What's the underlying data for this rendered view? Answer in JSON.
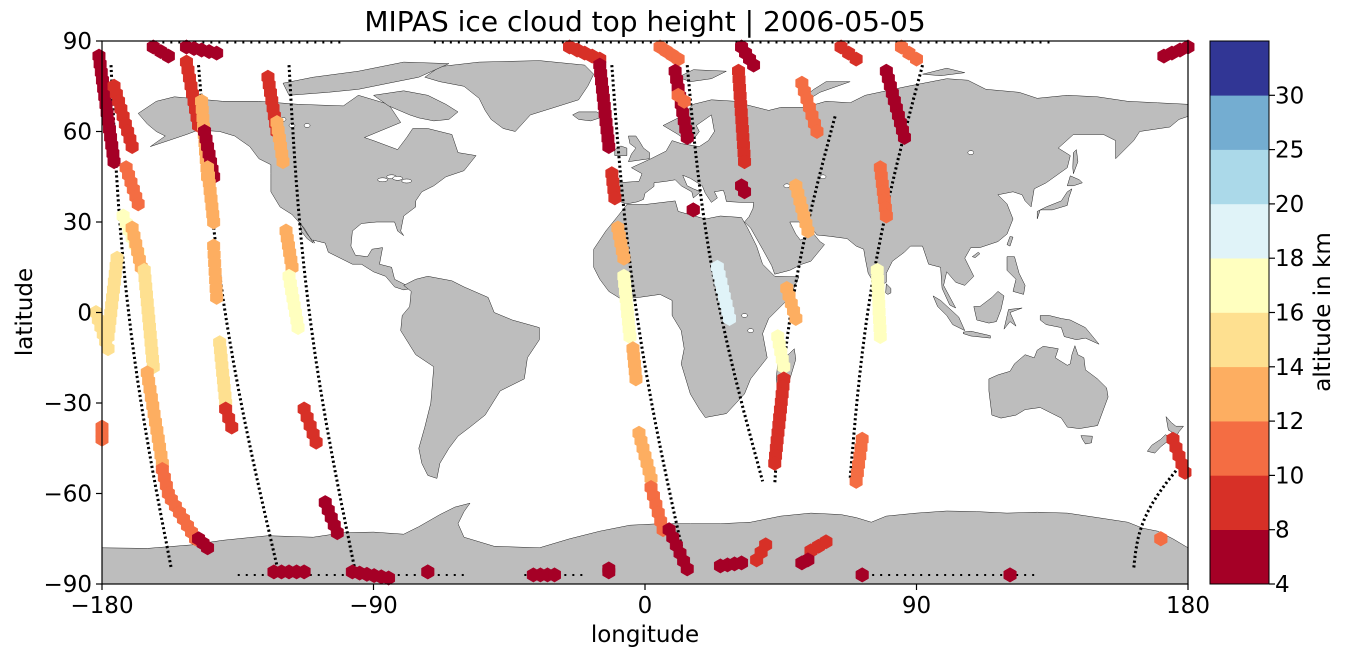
{
  "chart_data": {
    "type": "scatter",
    "title": "MIPAS ice cloud top height | 2006-05-05",
    "xlabel": "longitude",
    "ylabel": "latitude",
    "xlim": [
      -180,
      180
    ],
    "ylim": [
      -90,
      90
    ],
    "xticks": [
      -180,
      -90,
      0,
      90,
      180
    ],
    "yticks": [
      90,
      60,
      30,
      0,
      -30,
      -60,
      -90
    ],
    "xtick_labels": [
      "−180",
      "−90",
      "0",
      "90",
      "180"
    ],
    "ytick_labels": [
      "90",
      "60",
      "30",
      "0",
      "−30",
      "−60",
      "−90"
    ],
    "grid": false,
    "background_map": "world land masses in grey",
    "colors": {
      "land": "#bdbdbd",
      "coast": "#222222",
      "track": "#000000"
    },
    "colorbar": {
      "label": "altitude in km",
      "bounds": [
        4,
        8,
        10,
        12,
        14,
        16,
        18,
        20,
        25,
        30
      ],
      "tick_labels": [
        "4",
        "8",
        "10",
        "12",
        "14",
        "16",
        "18",
        "20",
        "25",
        "30"
      ],
      "colors": [
        "#a50026",
        "#d73027",
        "#f46d43",
        "#fdae61",
        "#fee090",
        "#ffffbf",
        "#e0f3f8",
        "#abd9e9",
        "#74add1",
        "#313695"
      ]
    },
    "orbit_tracks": [
      {
        "start_lon": -177,
        "end_lon": -157,
        "lat_top": 82,
        "lat_bottom": -85
      },
      {
        "start_lon": -148,
        "end_lon": -122,
        "lat_top": 82,
        "lat_bottom": -84
      },
      {
        "start_lon": -118,
        "end_lon": -96,
        "lat_top": 82,
        "lat_bottom": -86
      },
      {
        "start_lon": -11,
        "end_lon": 14,
        "lat_top": 82,
        "lat_bottom": -86
      },
      {
        "start_lon": 14,
        "end_lon": 39,
        "lat_top": 82,
        "lat_bottom": -56
      },
      {
        "start_lon": 63,
        "end_lon": 43,
        "lat_top": 65,
        "lat_bottom": -57
      },
      {
        "start_lon": 92,
        "end_lon": 68,
        "lat_top": 82,
        "lat_bottom": -55
      },
      {
        "start_lon": 178,
        "end_lon": 162,
        "lat_top": -50,
        "lat_bottom": -85
      }
    ],
    "cloud_segments": [
      {
        "lon": [
          -181,
          -176
        ],
        "lat": [
          85,
          50
        ],
        "alt": 6
      },
      {
        "lon": [
          -176,
          -170
        ],
        "lat": [
          75,
          55
        ],
        "alt": 9
      },
      {
        "lon": [
          -172,
          -168
        ],
        "lat": [
          48,
          36
        ],
        "alt": 11
      },
      {
        "lon": [
          -173,
          -168
        ],
        "lat": [
          32,
          20
        ],
        "alt": 17
      },
      {
        "lon": [
          -175,
          -178
        ],
        "lat": [
          18,
          -8
        ],
        "alt": 15
      },
      {
        "lon": [
          -170,
          -167
        ],
        "lat": [
          28,
          15
        ],
        "alt": 13
      },
      {
        "lon": [
          -166,
          -163
        ],
        "lat": [
          14,
          -18
        ],
        "alt": 15
      },
      {
        "lon": [
          -165,
          -160
        ],
        "lat": [
          -20,
          -50
        ],
        "alt": 13
      },
      {
        "lon": [
          -160,
          -158
        ],
        "lat": [
          -52,
          -60
        ],
        "alt": 10
      },
      {
        "lon": [
          -157,
          -149
        ],
        "lat": [
          -62,
          -75
        ],
        "alt": 11
      },
      {
        "lon": [
          -148,
          -145
        ],
        "lat": [
          -75,
          -78
        ],
        "alt": 6
      },
      {
        "lon": [
          -180,
          -180
        ],
        "lat": [
          -38,
          -42
        ],
        "alt": 10
      },
      {
        "lon": [
          -182,
          -178
        ],
        "lat": [
          0,
          -12
        ],
        "alt": 15
      },
      {
        "lon": [
          -163,
          -158
        ],
        "lat": [
          88,
          85
        ],
        "alt": 6
      },
      {
        "lon": [
          -152,
          -142
        ],
        "lat": [
          88,
          86
        ],
        "alt": 6
      },
      {
        "lon": [
          -152,
          -148
        ],
        "lat": [
          83,
          62
        ],
        "alt": 9
      },
      {
        "lon": [
          -147,
          -145
        ],
        "lat": [
          70,
          45
        ],
        "alt": 13
      },
      {
        "lon": [
          -146,
          -143
        ],
        "lat": [
          60,
          45
        ],
        "alt": 6
      },
      {
        "lon": [
          -145,
          -143
        ],
        "lat": [
          48,
          30
        ],
        "alt": 13
      },
      {
        "lon": [
          -143,
          -142
        ],
        "lat": [
          22,
          5
        ],
        "alt": 12
      },
      {
        "lon": [
          -141,
          -139
        ],
        "lat": [
          -10,
          -30
        ],
        "alt": 15
      },
      {
        "lon": [
          -139,
          -137
        ],
        "lat": [
          -32,
          -38
        ],
        "alt": 9
      },
      {
        "lon": [
          -125,
          -122
        ],
        "lat": [
          78,
          60
        ],
        "alt": 9
      },
      {
        "lon": [
          -122,
          -120
        ],
        "lat": [
          63,
          50
        ],
        "alt": 13
      },
      {
        "lon": [
          -119,
          -117
        ],
        "lat": [
          27,
          15
        ],
        "alt": 12
      },
      {
        "lon": [
          -118,
          -115
        ],
        "lat": [
          12,
          -5
        ],
        "alt": 17
      },
      {
        "lon": [
          -113,
          -109
        ],
        "lat": [
          -32,
          -43
        ],
        "alt": 9
      },
      {
        "lon": [
          -106,
          -102
        ],
        "lat": [
          -63,
          -73
        ],
        "alt": 6
      },
      {
        "lon": [
          -123,
          -113
        ],
        "lat": [
          -86,
          -86
        ],
        "alt": 6
      },
      {
        "lon": [
          -97,
          -85
        ],
        "lat": [
          -86,
          -88
        ],
        "alt": 6
      },
      {
        "lon": [
          -72,
          -72
        ],
        "lat": [
          -86,
          -86
        ],
        "alt": 6
      },
      {
        "lon": [
          -37,
          -30
        ],
        "lat": [
          -87,
          -87
        ],
        "alt": 6
      },
      {
        "lon": [
          -25,
          -15
        ],
        "lat": [
          88,
          84
        ],
        "alt": 9
      },
      {
        "lon": [
          -15,
          -12
        ],
        "lat": [
          82,
          55
        ],
        "alt": 6
      },
      {
        "lon": [
          -11,
          -10
        ],
        "lat": [
          46,
          38
        ],
        "alt": 9
      },
      {
        "lon": [
          -9,
          -7
        ],
        "lat": [
          28,
          18
        ],
        "alt": 13
      },
      {
        "lon": [
          -7,
          -5
        ],
        "lat": [
          12,
          -8
        ],
        "alt": 17
      },
      {
        "lon": [
          -4,
          -3
        ],
        "lat": [
          -12,
          -22
        ],
        "alt": 12
      },
      {
        "lon": [
          -2,
          2
        ],
        "lat": [
          -40,
          -55
        ],
        "alt": 13
      },
      {
        "lon": [
          2,
          6
        ],
        "lat": [
          -58,
          -72
        ],
        "alt": 10
      },
      {
        "lon": [
          8,
          14
        ],
        "lat": [
          -72,
          -85
        ],
        "alt": 6
      },
      {
        "lon": [
          5,
          11
        ],
        "lat": [
          88,
          84
        ],
        "alt": 10
      },
      {
        "lon": [
          10,
          14
        ],
        "lat": [
          80,
          58
        ],
        "alt": 6
      },
      {
        "lon": [
          11,
          13
        ],
        "lat": [
          72,
          70
        ],
        "alt": 11
      },
      {
        "lon": [
          16,
          16
        ],
        "lat": [
          34,
          34
        ],
        "alt": 6
      },
      {
        "lon": [
          24,
          28
        ],
        "lat": [
          15,
          -2
        ],
        "alt": 18
      },
      {
        "lon": [
          32,
          36
        ],
        "lat": [
          88,
          82
        ],
        "alt": 6
      },
      {
        "lon": [
          31,
          33
        ],
        "lat": [
          80,
          50
        ],
        "alt": 9
      },
      {
        "lon": [
          32,
          33
        ],
        "lat": [
          42,
          40
        ],
        "alt": 6
      },
      {
        "lon": [
          52,
          57
        ],
        "lat": [
          76,
          60
        ],
        "alt": 10
      },
      {
        "lon": [
          50,
          54
        ],
        "lat": [
          42,
          27
        ],
        "alt": 13
      },
      {
        "lon": [
          47,
          50
        ],
        "lat": [
          8,
          -2
        ],
        "alt": 12
      },
      {
        "lon": [
          44,
          46
        ],
        "lat": [
          -8,
          -18
        ],
        "alt": 17
      },
      {
        "lon": [
          46,
          43
        ],
        "lat": [
          -22,
          -50
        ],
        "alt": 9
      },
      {
        "lon": [
          65,
          70
        ],
        "lat": [
          88,
          84
        ],
        "alt": 9
      },
      {
        "lon": [
          85,
          90
        ],
        "lat": [
          88,
          84
        ],
        "alt": 10
      },
      {
        "lon": [
          80,
          86
        ],
        "lat": [
          80,
          58
        ],
        "alt": 6
      },
      {
        "lon": [
          78,
          80
        ],
        "lat": [
          48,
          32
        ],
        "alt": 11
      },
      {
        "lon": [
          77,
          78
        ],
        "lat": [
          14,
          -8
        ],
        "alt": 17
      },
      {
        "lon": [
          72,
          70
        ],
        "lat": [
          -42,
          -56
        ],
        "alt": 10
      },
      {
        "lon": [
          37,
          40
        ],
        "lat": [
          -82,
          -77
        ],
        "alt": 8
      },
      {
        "lon": [
          55,
          60
        ],
        "lat": [
          -79,
          -76
        ],
        "alt": 9
      },
      {
        "lon": [
          52,
          54
        ],
        "lat": [
          -83,
          -82
        ],
        "alt": 6
      },
      {
        "lon": [
          25,
          32
        ],
        "lat": [
          -84,
          -83
        ],
        "alt": 6
      },
      {
        "lon": [
          -12,
          -12
        ],
        "lat": [
          -85,
          -86
        ],
        "alt": 6
      },
      {
        "lon": [
          72,
          72
        ],
        "lat": [
          -87,
          -87
        ],
        "alt": 6
      },
      {
        "lon": [
          121,
          121
        ],
        "lat": [
          -87,
          -87
        ],
        "alt": 6
      },
      {
        "lon": [
          172,
          180
        ],
        "lat": [
          85,
          88
        ],
        "alt": 6
      },
      {
        "lon": [
          175,
          179
        ],
        "lat": [
          -42,
          -53
        ],
        "alt": 9
      },
      {
        "lon": [
          171,
          171
        ],
        "lat": [
          -75,
          -75
        ],
        "alt": 10
      }
    ]
  }
}
